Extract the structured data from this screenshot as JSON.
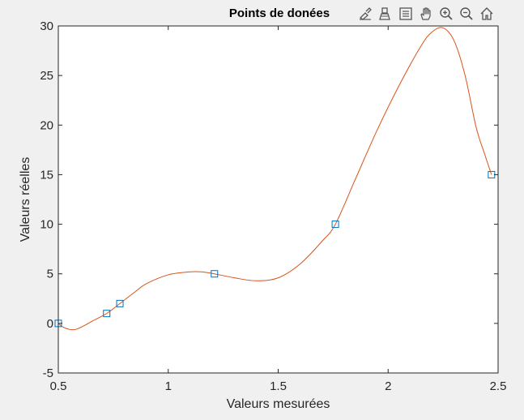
{
  "toolbar": {
    "icons": [
      "brush-icon",
      "data-tip-icon",
      "legend-icon",
      "pan-hand-icon",
      "zoom-in-icon",
      "zoom-out-icon",
      "home-icon"
    ]
  },
  "colors": {
    "curve": "#d95319",
    "marker": "#0072bd",
    "axis": "#262626",
    "figure_bg": "#f0f0f0",
    "axes_bg": "#ffffff"
  },
  "chart_data": {
    "type": "line",
    "title": "Points de donées",
    "xlabel": "Valeurs mesurées",
    "ylabel": "Valeurs réelles",
    "xlim": [
      0.5,
      2.5
    ],
    "ylim": [
      -5,
      30
    ],
    "xticks": [
      0.5,
      1,
      1.5,
      2,
      2.5
    ],
    "xtick_labels": [
      "0.5",
      "1",
      "1.5",
      "2",
      "2.5"
    ],
    "yticks": [
      -5,
      0,
      5,
      10,
      15,
      20,
      25,
      30
    ],
    "ytick_labels": [
      "-5",
      "0",
      "5",
      "10",
      "15",
      "20",
      "25",
      "30"
    ],
    "grid": false,
    "series": [
      {
        "kind": "markers",
        "marker": "square",
        "x": [
          0.5,
          0.72,
          0.78,
          1.21,
          1.76,
          2.47
        ],
        "y": [
          0,
          1,
          2,
          5,
          10,
          15
        ]
      },
      {
        "kind": "line",
        "x": [
          0.5,
          0.52,
          0.55,
          0.58,
          0.62,
          0.66,
          0.72,
          0.78,
          0.85,
          0.9,
          1.0,
          1.1,
          1.15,
          1.21,
          1.3,
          1.4,
          1.5,
          1.6,
          1.7,
          1.76,
          1.85,
          1.95,
          2.05,
          2.15,
          2.2,
          2.25,
          2.3,
          2.35,
          2.4,
          2.44,
          2.47
        ],
        "y": [
          0,
          -0.35,
          -0.6,
          -0.6,
          -0.2,
          0.3,
          1,
          2,
          3.2,
          4,
          4.9,
          5.2,
          5.2,
          5,
          4.6,
          4.3,
          4.6,
          6,
          8.3,
          10,
          14.5,
          19.5,
          24,
          28,
          29.4,
          29.8,
          28.5,
          25,
          19.8,
          17,
          15
        ]
      }
    ]
  }
}
